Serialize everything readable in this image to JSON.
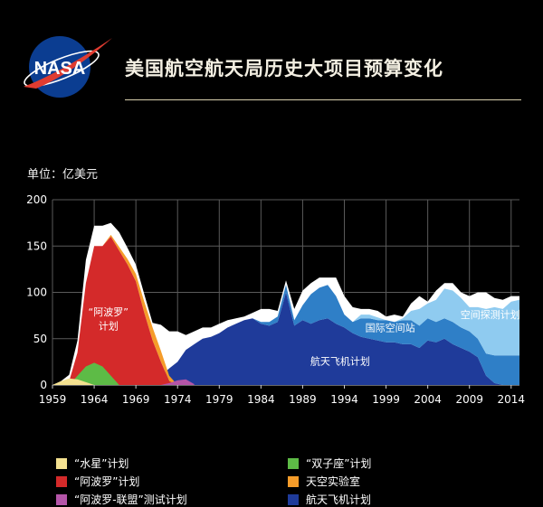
{
  "header": {
    "logo_text": "NASA",
    "title": "美国航空航天局历史大项目预算变化"
  },
  "unit_label": "单位：亿美元",
  "colors": {
    "mercury": "#f4e190",
    "gemini": "#5dbb46",
    "apollo": "#d42a2a",
    "skylab": "#f59c2a",
    "astp": "#b455a8",
    "shuttle": "#1f3b9a",
    "iss": "#2f7fc7",
    "exploration": "#8fcbf0",
    "white": "#ffffff",
    "grid": "#5a5a5a",
    "nasa_blue": "#0b3d91",
    "nasa_red": "#e03c31"
  },
  "chart_data": {
    "type": "area",
    "stacked": true,
    "xlim": [
      1959,
      2015
    ],
    "ylim": [
      0,
      200
    ],
    "x_ticks": [
      "1959",
      "1964",
      "1969",
      "1974",
      "1979",
      "1984",
      "1989",
      "1994",
      "1999",
      "2004",
      "2009",
      "2014"
    ],
    "y_ticks": [
      "0",
      "50",
      "100",
      "150",
      "200"
    ],
    "grid": true,
    "series": [
      {
        "key": "mercury",
        "name": "“水星”计划",
        "color_key": "mercury",
        "points": [
          [
            1959,
            0
          ],
          [
            1960,
            4
          ],
          [
            1961,
            7
          ],
          [
            1962,
            6
          ],
          [
            1963,
            3
          ],
          [
            1964,
            0
          ]
        ]
      },
      {
        "key": "gemini",
        "name": "“双子座”计划",
        "color_key": "gemini",
        "points": [
          [
            1961,
            0
          ],
          [
            1962,
            10
          ],
          [
            1963,
            20
          ],
          [
            1964,
            24
          ],
          [
            1965,
            20
          ],
          [
            1966,
            10
          ],
          [
            1967,
            0
          ]
        ]
      },
      {
        "key": "apollo",
        "name": "“阿波罗”计划",
        "color_key": "apollo",
        "points": [
          [
            1960,
            0
          ],
          [
            1961,
            4
          ],
          [
            1962,
            35
          ],
          [
            1963,
            110
          ],
          [
            1964,
            150
          ],
          [
            1965,
            150
          ],
          [
            1966,
            160
          ],
          [
            1967,
            145
          ],
          [
            1968,
            130
          ],
          [
            1969,
            112
          ],
          [
            1970,
            78
          ],
          [
            1971,
            48
          ],
          [
            1972,
            25
          ],
          [
            1973,
            4
          ],
          [
            1974,
            0
          ]
        ]
      },
      {
        "key": "skylab",
        "name": "天空实验室",
        "color_key": "skylab",
        "points": [
          [
            1965,
            0
          ],
          [
            1966,
            2
          ],
          [
            1967,
            4
          ],
          [
            1968,
            6
          ],
          [
            1969,
            8
          ],
          [
            1970,
            12
          ],
          [
            1971,
            14
          ],
          [
            1972,
            12
          ],
          [
            1973,
            6
          ],
          [
            1974,
            0
          ]
        ]
      },
      {
        "key": "astp",
        "name": "“阿波罗-联盟”测试计划",
        "color_key": "astp",
        "points": [
          [
            1972,
            0
          ],
          [
            1973,
            2
          ],
          [
            1974,
            5
          ],
          [
            1975,
            6
          ],
          [
            1976,
            1
          ]
        ]
      },
      {
        "key": "shuttle",
        "name": "航天飞机计划",
        "color_key": "shuttle",
        "points": [
          [
            1971,
            0
          ],
          [
            1972,
            10
          ],
          [
            1973,
            18
          ],
          [
            1974,
            25
          ],
          [
            1975,
            38
          ],
          [
            1976,
            44
          ],
          [
            1977,
            50
          ],
          [
            1978,
            52
          ],
          [
            1979,
            56
          ],
          [
            1980,
            62
          ],
          [
            1981,
            66
          ],
          [
            1982,
            70
          ],
          [
            1983,
            72
          ],
          [
            1984,
            66
          ],
          [
            1985,
            64
          ],
          [
            1986,
            68
          ],
          [
            1987,
            100
          ],
          [
            1988,
            64
          ],
          [
            1989,
            70
          ],
          [
            1990,
            66
          ],
          [
            1991,
            70
          ],
          [
            1992,
            72
          ],
          [
            1993,
            66
          ],
          [
            1994,
            62
          ],
          [
            1995,
            56
          ],
          [
            1996,
            52
          ],
          [
            1997,
            50
          ],
          [
            1998,
            48
          ],
          [
            1999,
            46
          ],
          [
            2000,
            46
          ],
          [
            2001,
            44
          ],
          [
            2002,
            44
          ],
          [
            2003,
            40
          ],
          [
            2004,
            48
          ],
          [
            2005,
            46
          ],
          [
            2006,
            50
          ],
          [
            2007,
            44
          ],
          [
            2008,
            40
          ],
          [
            2009,
            36
          ],
          [
            2010,
            30
          ],
          [
            2011,
            10
          ],
          [
            2012,
            2
          ],
          [
            2013,
            0
          ]
        ]
      },
      {
        "key": "iss",
        "name": "国际空间站",
        "color_key": "iss",
        "points": [
          [
            1983,
            0
          ],
          [
            1984,
            2
          ],
          [
            1985,
            4
          ],
          [
            1986,
            6
          ],
          [
            1987,
            8
          ],
          [
            1988,
            6
          ],
          [
            1989,
            16
          ],
          [
            1990,
            32
          ],
          [
            1991,
            35
          ],
          [
            1992,
            36
          ],
          [
            1993,
            30
          ],
          [
            1994,
            14
          ],
          [
            1995,
            12
          ],
          [
            1996,
            20
          ],
          [
            1997,
            22
          ],
          [
            1998,
            22
          ],
          [
            1999,
            24
          ],
          [
            2000,
            22
          ],
          [
            2001,
            26
          ],
          [
            2002,
            26
          ],
          [
            2003,
            24
          ],
          [
            2004,
            24
          ],
          [
            2005,
            22
          ],
          [
            2006,
            22
          ],
          [
            2007,
            24
          ],
          [
            2008,
            22
          ],
          [
            2009,
            22
          ],
          [
            2010,
            20
          ],
          [
            2011,
            24
          ],
          [
            2012,
            30
          ],
          [
            2013,
            32
          ],
          [
            2014,
            32
          ],
          [
            2015,
            32
          ]
        ]
      },
      {
        "key": "exploration",
        "name": "空间探测计划",
        "color_key": "exploration",
        "points": [
          [
            1995,
            0
          ],
          [
            1996,
            4
          ],
          [
            1997,
            4
          ],
          [
            1998,
            3
          ],
          [
            1999,
            0
          ],
          [
            2000,
            0
          ],
          [
            2001,
            2
          ],
          [
            2002,
            10
          ],
          [
            2003,
            18
          ],
          [
            2004,
            16
          ],
          [
            2005,
            24
          ],
          [
            2006,
            32
          ],
          [
            2007,
            34
          ],
          [
            2008,
            32
          ],
          [
            2009,
            26
          ],
          [
            2010,
            34
          ],
          [
            2011,
            48
          ],
          [
            2012,
            52
          ],
          [
            2013,
            50
          ],
          [
            2014,
            58
          ],
          [
            2015,
            60
          ]
        ]
      }
    ],
    "top_line": [
      [
        1959,
        0
      ],
      [
        1960,
        4
      ],
      [
        1961,
        11
      ],
      [
        1962,
        48
      ],
      [
        1963,
        135
      ],
      [
        1964,
        172
      ],
      [
        1965,
        172
      ],
      [
        1966,
        175
      ],
      [
        1967,
        165
      ],
      [
        1968,
        148
      ],
      [
        1969,
        130
      ],
      [
        1970,
        98
      ],
      [
        1971,
        67
      ],
      [
        1972,
        65
      ],
      [
        1973,
        58
      ],
      [
        1974,
        58
      ],
      [
        1975,
        54
      ],
      [
        1976,
        58
      ],
      [
        1977,
        62
      ],
      [
        1978,
        62
      ],
      [
        1979,
        66
      ],
      [
        1980,
        70
      ],
      [
        1981,
        72
      ],
      [
        1982,
        74
      ],
      [
        1983,
        78
      ],
      [
        1984,
        82
      ],
      [
        1985,
        82
      ],
      [
        1986,
        80
      ],
      [
        1987,
        113
      ],
      [
        1988,
        82
      ],
      [
        1989,
        102
      ],
      [
        1990,
        110
      ],
      [
        1991,
        116
      ],
      [
        1992,
        116
      ],
      [
        1993,
        116
      ],
      [
        1994,
        96
      ],
      [
        1995,
        84
      ],
      [
        1996,
        82
      ],
      [
        1997,
        82
      ],
      [
        1998,
        80
      ],
      [
        1999,
        74
      ],
      [
        2000,
        76
      ],
      [
        2001,
        74
      ],
      [
        2002,
        88
      ],
      [
        2003,
        96
      ],
      [
        2004,
        90
      ],
      [
        2005,
        102
      ],
      [
        2006,
        110
      ],
      [
        2007,
        110
      ],
      [
        2008,
        100
      ],
      [
        2009,
        96
      ],
      [
        2010,
        100
      ],
      [
        2011,
        100
      ],
      [
        2012,
        94
      ],
      [
        2013,
        92
      ],
      [
        2014,
        96
      ],
      [
        2015,
        96
      ]
    ],
    "annotations": [
      {
        "text": "“阿波罗”",
        "x": 1965.7,
        "y": 75
      },
      {
        "text": "计划",
        "x": 1965.7,
        "y": 60
      },
      {
        "text": "国际空间站",
        "x": 1999.5,
        "y": 58
      },
      {
        "text": "航天飞机计划",
        "x": 1993.5,
        "y": 22
      },
      {
        "text": "空间探测计划",
        "x": 2011.5,
        "y": 72
      }
    ]
  },
  "legend": [
    {
      "label": "“水星”计划",
      "color_key": "mercury"
    },
    {
      "label": "“双子座”计划",
      "color_key": "gemini"
    },
    {
      "label": "“阿波罗”计划",
      "color_key": "apollo"
    },
    {
      "label": "天空实验室",
      "color_key": "skylab"
    },
    {
      "label": "“阿波罗-联盟”测试计划",
      "color_key": "astp"
    },
    {
      "label": "航天飞机计划",
      "color_key": "shuttle"
    }
  ]
}
